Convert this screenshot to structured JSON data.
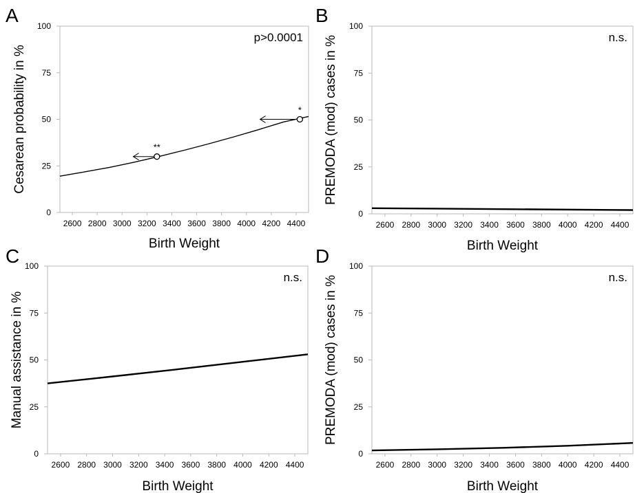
{
  "chart_data": [
    {
      "panel_label": "A",
      "type": "line",
      "xlabel": "Birth Weight",
      "ylabel": "Cesarean probability in %",
      "annotation": "p>0.0001",
      "xlim": [
        2500,
        4500
      ],
      "ylim": [
        0,
        100
      ],
      "x_ticks": [
        "2600",
        "2800",
        "3000",
        "3200",
        "3400",
        "3600",
        "3800",
        "4000",
        "4200",
        "4400"
      ],
      "y_ticks": [
        "0",
        "25",
        "50",
        "75",
        "100"
      ],
      "x": [
        2500,
        2700,
        2900,
        3100,
        3300,
        3500,
        3700,
        3900,
        4100,
        4300,
        4500
      ],
      "series": [
        {
          "values": [
            19.5,
            21.8,
            24.2,
            27.0,
            30.1,
            33.4,
            36.9,
            40.6,
            44.5,
            48.6,
            51.5
          ]
        }
      ],
      "markers": [
        {
          "x": 3280,
          "y": 30,
          "label": "**",
          "arrow_to_x": 3090
        },
        {
          "x": 4430,
          "y": 50,
          "label": "*",
          "arrow_to_x": 4110
        }
      ],
      "stroke_color": "#000000"
    },
    {
      "panel_label": "B",
      "type": "line",
      "xlabel": "Birth Weight",
      "ylabel": "PREMODA (mod) cases in %",
      "annotation": "n.s.",
      "xlim": [
        2500,
        4500
      ],
      "ylim": [
        0,
        100
      ],
      "x_ticks": [
        "2600",
        "2800",
        "3000",
        "3200",
        "3400",
        "3600",
        "3800",
        "4000",
        "4200",
        "4400"
      ],
      "y_ticks": [
        "0",
        "25",
        "50",
        "75",
        "100"
      ],
      "x": [
        2500,
        4500
      ],
      "series": [
        {
          "values": [
            3.0,
            2.0
          ]
        }
      ],
      "markers": [],
      "stroke_color": "#000000"
    },
    {
      "panel_label": "C",
      "type": "line",
      "xlabel": "Birth Weight",
      "ylabel": "Manual assistance in %",
      "annotation": "n.s.",
      "xlim": [
        2500,
        4500
      ],
      "ylim": [
        0,
        100
      ],
      "x_ticks": [
        "2600",
        "2800",
        "3000",
        "3200",
        "3400",
        "3600",
        "3800",
        "4000",
        "4200",
        "4400"
      ],
      "y_ticks": [
        "0",
        "25",
        "50",
        "75",
        "100"
      ],
      "x": [
        2500,
        3000,
        3500,
        4000,
        4500
      ],
      "series": [
        {
          "values": [
            37.5,
            41.2,
            45.0,
            49.0,
            53.0
          ]
        }
      ],
      "markers": [],
      "stroke_color": "#000000"
    },
    {
      "panel_label": "D",
      "type": "line",
      "xlabel": "Birth Weight",
      "ylabel": "PREMODA (mod) cases in %",
      "annotation": "n.s.",
      "xlim": [
        2500,
        4500
      ],
      "ylim": [
        0,
        100
      ],
      "x_ticks": [
        "2600",
        "2800",
        "3000",
        "3200",
        "3400",
        "3600",
        "3800",
        "4000",
        "4200",
        "4400"
      ],
      "y_ticks": [
        "0",
        "25",
        "50",
        "75",
        "100"
      ],
      "x": [
        2500,
        3000,
        3500,
        4000,
        4500
      ],
      "series": [
        {
          "values": [
            1.8,
            2.4,
            3.2,
            4.3,
            5.8
          ]
        }
      ],
      "markers": [],
      "stroke_color": "#000000"
    }
  ]
}
